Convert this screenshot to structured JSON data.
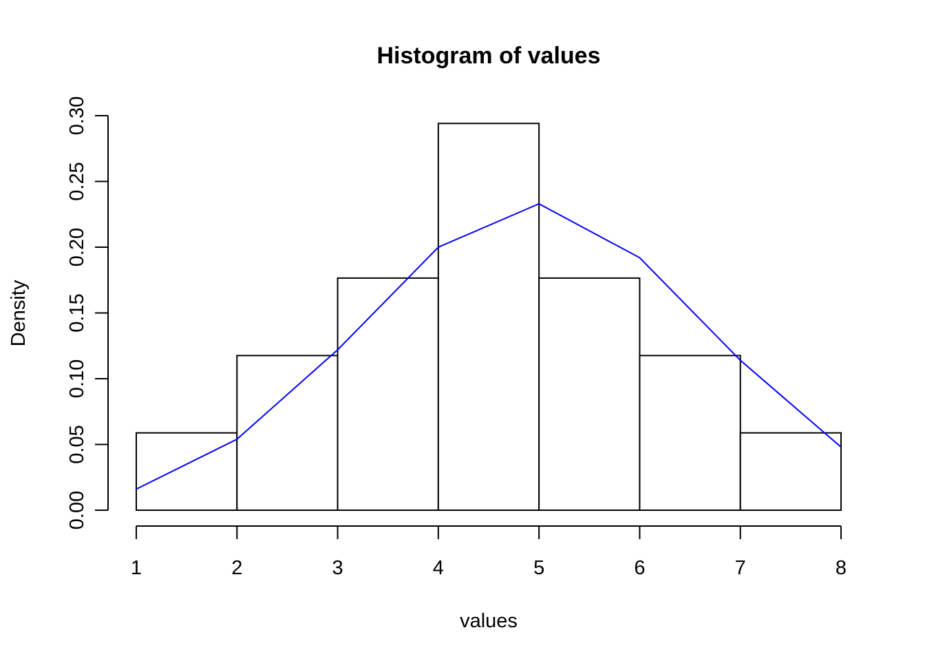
{
  "chart_data": {
    "type": "bar",
    "title": "Histogram of values",
    "xlabel": "values",
    "ylabel": "Density",
    "bins": [
      {
        "x0": 1,
        "x1": 2,
        "density": 0.0588
      },
      {
        "x0": 2,
        "x1": 3,
        "density": 0.1176
      },
      {
        "x0": 3,
        "x1": 4,
        "density": 0.1765
      },
      {
        "x0": 4,
        "x1": 5,
        "density": 0.2941
      },
      {
        "x0": 5,
        "x1": 6,
        "density": 0.1765
      },
      {
        "x0": 6,
        "x1": 7,
        "density": 0.1176
      },
      {
        "x0": 7,
        "x1": 8,
        "density": 0.0588
      }
    ],
    "series": [
      {
        "type": "line",
        "color": "#0000ff",
        "x": [
          1,
          2,
          3,
          4,
          5,
          6,
          7,
          8
        ],
        "y": [
          0.016,
          0.054,
          0.122,
          0.2,
          0.233,
          0.192,
          0.114,
          0.048
        ]
      }
    ],
    "xlim": [
      1,
      8
    ],
    "ylim": [
      0,
      0.3
    ],
    "x_ticks": [
      1,
      2,
      3,
      4,
      5,
      6,
      7,
      8
    ],
    "y_ticks": [
      0.0,
      0.05,
      0.1,
      0.15,
      0.2,
      0.25,
      0.3
    ],
    "x_tick_labels": [
      "1",
      "2",
      "3",
      "4",
      "5",
      "6",
      "7",
      "8"
    ],
    "y_tick_labels": [
      "0.00",
      "0.05",
      "0.10",
      "0.15",
      "0.20",
      "0.25",
      "0.30"
    ],
    "bar_fill": "#ffffff",
    "bar_stroke": "#000000",
    "grid": false,
    "legend": "none"
  }
}
